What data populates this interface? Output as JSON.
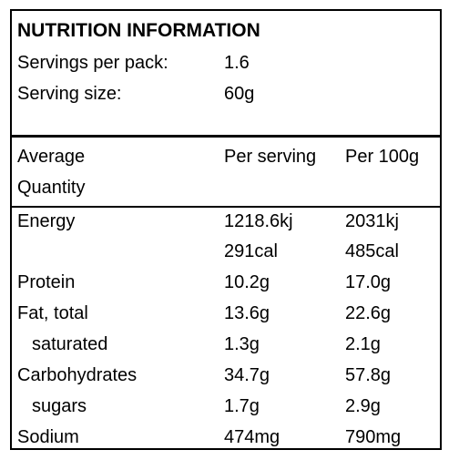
{
  "title": "NUTRITION INFORMATION",
  "servings_per_pack": {
    "label": "Servings per pack:",
    "value": "1.6"
  },
  "serving_size": {
    "label": "Serving size:",
    "value": "60g"
  },
  "header": {
    "col1_line1": "Average",
    "col1_line2": "Quantity",
    "col2": "Per serving",
    "col3": "Per 100g"
  },
  "rows": {
    "energy": {
      "label": "Energy",
      "per_serving": "1218.6kj",
      "per_100g": "2031kj",
      "per_serving_cal": "291cal",
      "per_100g_cal": "485cal"
    },
    "protein": {
      "label": "Protein",
      "per_serving": "10.2g",
      "per_100g": "17.0g"
    },
    "fat_total": {
      "label": "Fat, total",
      "per_serving": "13.6g",
      "per_100g": "22.6g"
    },
    "saturated": {
      "label": "saturated",
      "per_serving": "1.3g",
      "per_100g": "2.1g"
    },
    "carbohydrates": {
      "label": "Carbohydrates",
      "per_serving": "34.7g",
      "per_100g": "57.8g"
    },
    "sugars": {
      "label": "sugars",
      "per_serving": "1.7g",
      "per_100g": "2.9g"
    },
    "sodium": {
      "label": "Sodium",
      "per_serving": "474mg",
      "per_100g": "790mg"
    }
  }
}
